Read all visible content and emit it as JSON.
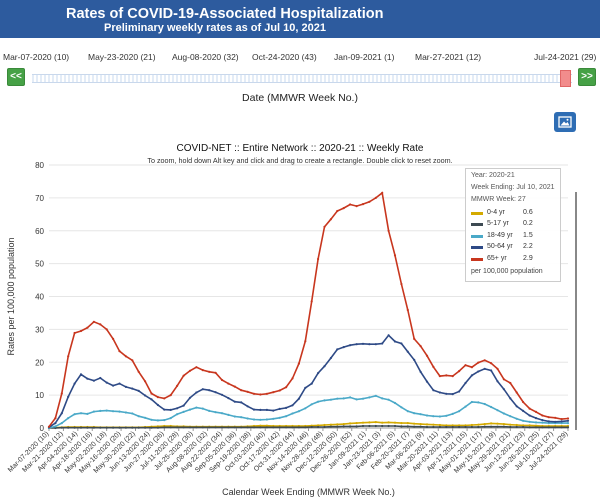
{
  "header": {
    "title": "Rates of COVID-19-Associated Hospitalization",
    "subtitle": "Preliminary weekly rates as of Jul 10, 2021"
  },
  "slider": {
    "labels": [
      "Mar-07-2020 (10)",
      "May-23-2020 (21)",
      "Aug-08-2020 (32)",
      "Oct-24-2020 (43)",
      "Jan-09-2021 (1)",
      "Mar-27-2021 (12)",
      "Jul-24-2021 (29)"
    ],
    "prev_label": "<<",
    "next_label": ">>",
    "title": "Date (MMWR Week No.)"
  },
  "colors": {
    "header_bg": "#2d5b9e",
    "nav_button": "#46a146",
    "image_button": "#2e6db4",
    "age_0_4": "#d4aa00",
    "age_5_17": "#3d4a52",
    "age_18_49": "#4aa9c8",
    "age_50_64": "#2e4a86",
    "age_65_plus": "#c8361e"
  },
  "icons": {
    "image_export": "image-icon"
  },
  "chart_data": {
    "type": "line",
    "title": "COVID-NET :: Entire Network :: 2020-21 :: Weekly Rate",
    "subtitle": "To zoom, hold down Alt key and click and drag to create a rectangle. Double click to reset zoom.",
    "xlabel": "Calendar Week Ending (MMWR Week No.)",
    "ylabel": "Rates per 100,000 population",
    "ylim": [
      0,
      80
    ],
    "yticks": [
      0,
      10,
      20,
      30,
      40,
      50,
      60,
      70,
      80
    ],
    "xtick_labels": [
      "Mar-07-2020 (10)",
      "Mar-21-2020 (12)",
      "Apr-04-2020 (14)",
      "Apr-18-2020 (16)",
      "May-02-2020 (18)",
      "May-16-2020 (20)",
      "May-30-2020 (22)",
      "Jun-13-2020 (24)",
      "Jun-27-2020 (26)",
      "Jul-11-2020 (28)",
      "Jul-25-2020 (30)",
      "Aug-08-2020 (32)",
      "Aug-22-2020 (34)",
      "Sep-05-2020 (36)",
      "Sep-19-2020 (38)",
      "Oct-03-2020 (40)",
      "Oct-17-2020 (42)",
      "Oct-31-2020 (44)",
      "Nov-14-2020 (46)",
      "Nov-28-2020 (48)",
      "Dec-12-2020 (50)",
      "Dec-26-2020 (52)",
      "Jan-09-2021 (1)",
      "Jan-23-2021 (3)",
      "Feb-06-2021 (5)",
      "Feb-20-2021 (7)",
      "Mar-06-2021 (9)",
      "Mar-20-2021 (11)",
      "Apr-03-2021 (13)",
      "Apr-17-2021 (15)",
      "May-01-2021 (17)",
      "May-15-2021 (19)",
      "May-29-2021 (21)",
      "Jun-12-2021 (23)",
      "Jun-26-2021 (25)",
      "Jul-10-2021 (27)",
      "Jul-24-2021 (29)"
    ],
    "grid": true,
    "series": [
      {
        "name": "0-4 yr",
        "color": "#d4aa00",
        "values": [
          0,
          0.1,
          0.2,
          0.3,
          0.3,
          0.3,
          0.3,
          0.3,
          0.2,
          0.2,
          0.2,
          0.2,
          0.2,
          0.2,
          0.2,
          0.3,
          0.4,
          0.5,
          0.6,
          0.6,
          0.5,
          0.5,
          0.4,
          0.4,
          0.4,
          0.4,
          0.4,
          0.4,
          0.4,
          0.4,
          0.4,
          0.5,
          0.6,
          0.7,
          0.7,
          0.6,
          0.6,
          0.6,
          0.6,
          0.6,
          0.6,
          0.7,
          0.8,
          0.9,
          1.0,
          1.1,
          1.2,
          1.4,
          1.5,
          1.6,
          1.7,
          1.8,
          1.6,
          1.7,
          1.6,
          1.5,
          1.5,
          1.3,
          1.2,
          1.1,
          1.0,
          0.9,
          0.8,
          0.8,
          0.8,
          0.8,
          0.9,
          1.0,
          1.2,
          1.4,
          1.3,
          1.2,
          1.0,
          0.9,
          0.8,
          0.8,
          0.7,
          0.6,
          0.6,
          0.6,
          0.6,
          0.6
        ]
      },
      {
        "name": "5-17 yr",
        "color": "#3d4a52",
        "values": [
          0,
          0,
          0.1,
          0.1,
          0.1,
          0.1,
          0.1,
          0.1,
          0.1,
          0.1,
          0.1,
          0.1,
          0.1,
          0.1,
          0.1,
          0.1,
          0.1,
          0.1,
          0.2,
          0.2,
          0.2,
          0.2,
          0.2,
          0.2,
          0.2,
          0.2,
          0.2,
          0.2,
          0.2,
          0.2,
          0.2,
          0.2,
          0.2,
          0.2,
          0.2,
          0.2,
          0.2,
          0.2,
          0.2,
          0.2,
          0.2,
          0.3,
          0.3,
          0.3,
          0.4,
          0.4,
          0.5,
          0.5,
          0.5,
          0.6,
          0.6,
          0.6,
          0.6,
          0.6,
          0.6,
          0.5,
          0.5,
          0.4,
          0.4,
          0.3,
          0.3,
          0.3,
          0.3,
          0.3,
          0.3,
          0.3,
          0.3,
          0.3,
          0.4,
          0.4,
          0.4,
          0.4,
          0.3,
          0.3,
          0.3,
          0.2,
          0.2,
          0.2,
          0.2,
          0.2,
          0.2,
          0.2
        ]
      },
      {
        "name": "18-49 yr",
        "color": "#4aa9c8",
        "values": [
          0,
          0.5,
          1.5,
          3.0,
          4.2,
          4.5,
          4.3,
          5.0,
          5.2,
          5.3,
          5.1,
          5.0,
          4.7,
          4.4,
          3.6,
          3.1,
          2.5,
          2.3,
          2.4,
          3.0,
          4.2,
          4.9,
          5.6,
          6.2,
          5.9,
          5.2,
          4.8,
          4.5,
          4.0,
          3.5,
          3.3,
          2.9,
          2.6,
          2.5,
          2.6,
          2.8,
          3.1,
          3.6,
          4.4,
          5.1,
          6.0,
          7.2,
          8.0,
          8.4,
          8.6,
          8.9,
          9.0,
          9.3,
          8.7,
          8.9,
          9.3,
          9.8,
          9.0,
          8.6,
          7.6,
          6.3,
          5.1,
          4.5,
          4.2,
          3.8,
          3.6,
          3.5,
          3.7,
          4.3,
          5.1,
          6.5,
          7.9,
          7.8,
          7.3,
          6.4,
          5.4,
          4.4,
          3.6,
          2.8,
          2.2,
          1.9,
          1.7,
          1.6,
          1.5,
          1.5,
          1.5,
          1.5
        ]
      },
      {
        "name": "50-64 yr",
        "color": "#2e4a86",
        "values": [
          0.2,
          1.5,
          4.5,
          9.5,
          13.5,
          16.3,
          15.0,
          14.4,
          15.2,
          13.8,
          12.9,
          13.5,
          12.5,
          12.0,
          11.3,
          9.9,
          8.7,
          7.0,
          5.6,
          5.5,
          6.0,
          6.8,
          9.2,
          10.8,
          11.8,
          11.5,
          10.9,
          10.1,
          9.1,
          8.0,
          7.8,
          6.6,
          5.6,
          5.5,
          5.5,
          5.3,
          5.8,
          6.1,
          6.9,
          8.9,
          12.2,
          13.5,
          16.7,
          18.8,
          21.3,
          23.9,
          24.6,
          25.2,
          25.5,
          25.6,
          25.5,
          25.5,
          25.7,
          28.2,
          26.3,
          25.7,
          23.2,
          20.7,
          17.1,
          14.1,
          11.5,
          10.8,
          10.4,
          10.3,
          11.1,
          13.7,
          16.0,
          17.2,
          18.0,
          17.5,
          14.2,
          11.8,
          9.0,
          6.6,
          5.2,
          3.8,
          3.0,
          2.4,
          2.0,
          1.9,
          2.0,
          2.2
        ]
      },
      {
        "name": "65+ yr",
        "color": "#c8361e",
        "values": [
          0.4,
          3.0,
          10.5,
          21.8,
          28.9,
          29.5,
          30.5,
          32.3,
          31.5,
          30.0,
          27.1,
          23.4,
          21.8,
          20.6,
          17.1,
          14.2,
          10.5,
          9.4,
          9.0,
          10.0,
          12.8,
          15.9,
          17.4,
          18.5,
          17.6,
          17.1,
          16.8,
          14.6,
          13.5,
          12.6,
          11.5,
          11.0,
          10.4,
          10.2,
          10.4,
          10.9,
          11.4,
          12.4,
          15.1,
          19.6,
          26.4,
          38.5,
          51.4,
          61.2,
          63.5,
          66.0,
          66.9,
          68.0,
          67.5,
          68.1,
          68.8,
          70.0,
          71.5,
          60.0,
          52.5,
          43.8,
          35.9,
          27.1,
          24.9,
          22.0,
          18.6,
          15.8,
          16.0,
          15.8,
          17.3,
          19.1,
          18.5,
          19.9,
          20.6,
          19.7,
          18.0,
          14.8,
          13.7,
          10.8,
          7.9,
          5.9,
          4.9,
          3.8,
          3.3,
          3.1,
          2.7,
          2.9
        ]
      }
    ],
    "legend": {
      "position": "top-right",
      "year": "Year: 2020-21",
      "week_ending": "Week Ending: Jul 10, 2021",
      "mmwr_week": "MMWR Week: 27",
      "values": [
        "0.6",
        "0.2",
        "1.5",
        "2.2",
        "2.9"
      ],
      "footer": "per 100,000 population"
    }
  }
}
